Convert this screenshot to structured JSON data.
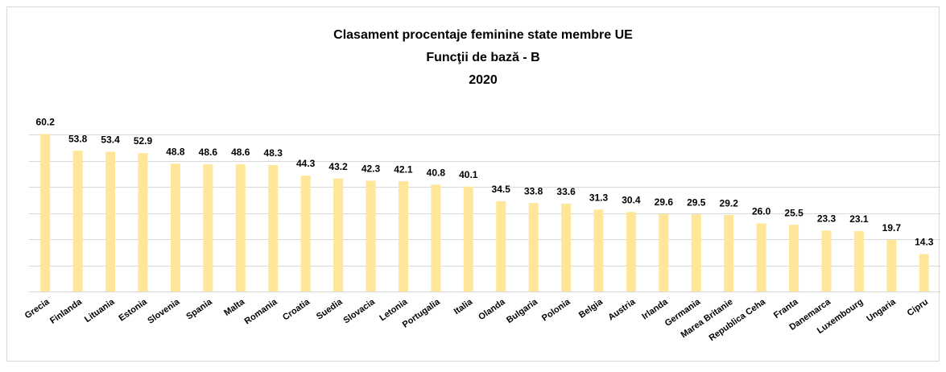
{
  "chart_data": {
    "type": "bar",
    "title": [
      "Clasament procentaje feminine state membre UE",
      "Funcţii de bază - B",
      "2020"
    ],
    "categories": [
      "Grecia",
      "Finlanda",
      "Lituania",
      "Estonia",
      "Slovenia",
      "Spania",
      "Malta",
      "Romania",
      "Croatia",
      "Suedia",
      "Slovacia",
      "Letonia",
      "Portugalia",
      "Italia",
      "Olanda",
      "Bulgaria",
      "Polonia",
      "Belgia",
      "Austria",
      "Irlanda",
      "Germania",
      "Marea Britanie",
      "Republica Ceha",
      "Franta",
      "Danemarca",
      "Luxembourg",
      "Ungaria",
      "Cipru"
    ],
    "values": [
      60.2,
      53.8,
      53.4,
      52.9,
      48.8,
      48.6,
      48.6,
      48.3,
      44.3,
      43.2,
      42.3,
      42.1,
      40.8,
      40.1,
      34.5,
      33.8,
      33.6,
      31.3,
      30.4,
      29.6,
      29.5,
      29.2,
      26.0,
      25.5,
      23.3,
      23.1,
      19.7,
      14.3
    ],
    "value_labels": [
      "60.2",
      "53.8",
      "53.4",
      "52.9",
      "48.8",
      "48.6",
      "48.6",
      "48.3",
      "44.3",
      "43.2",
      "42.3",
      "42.1",
      "40.8",
      "40.1",
      "34.5",
      "33.8",
      "33.6",
      "31.3",
      "30.4",
      "29.6",
      "29.5",
      "29.2",
      "26.0",
      "25.5",
      "23.3",
      "23.1",
      "19.7",
      "14.3"
    ],
    "color": "#ffe699",
    "ylim": [
      0,
      70
    ],
    "yticks": [
      0,
      10,
      20,
      30,
      40,
      50,
      60
    ],
    "grid": true
  }
}
